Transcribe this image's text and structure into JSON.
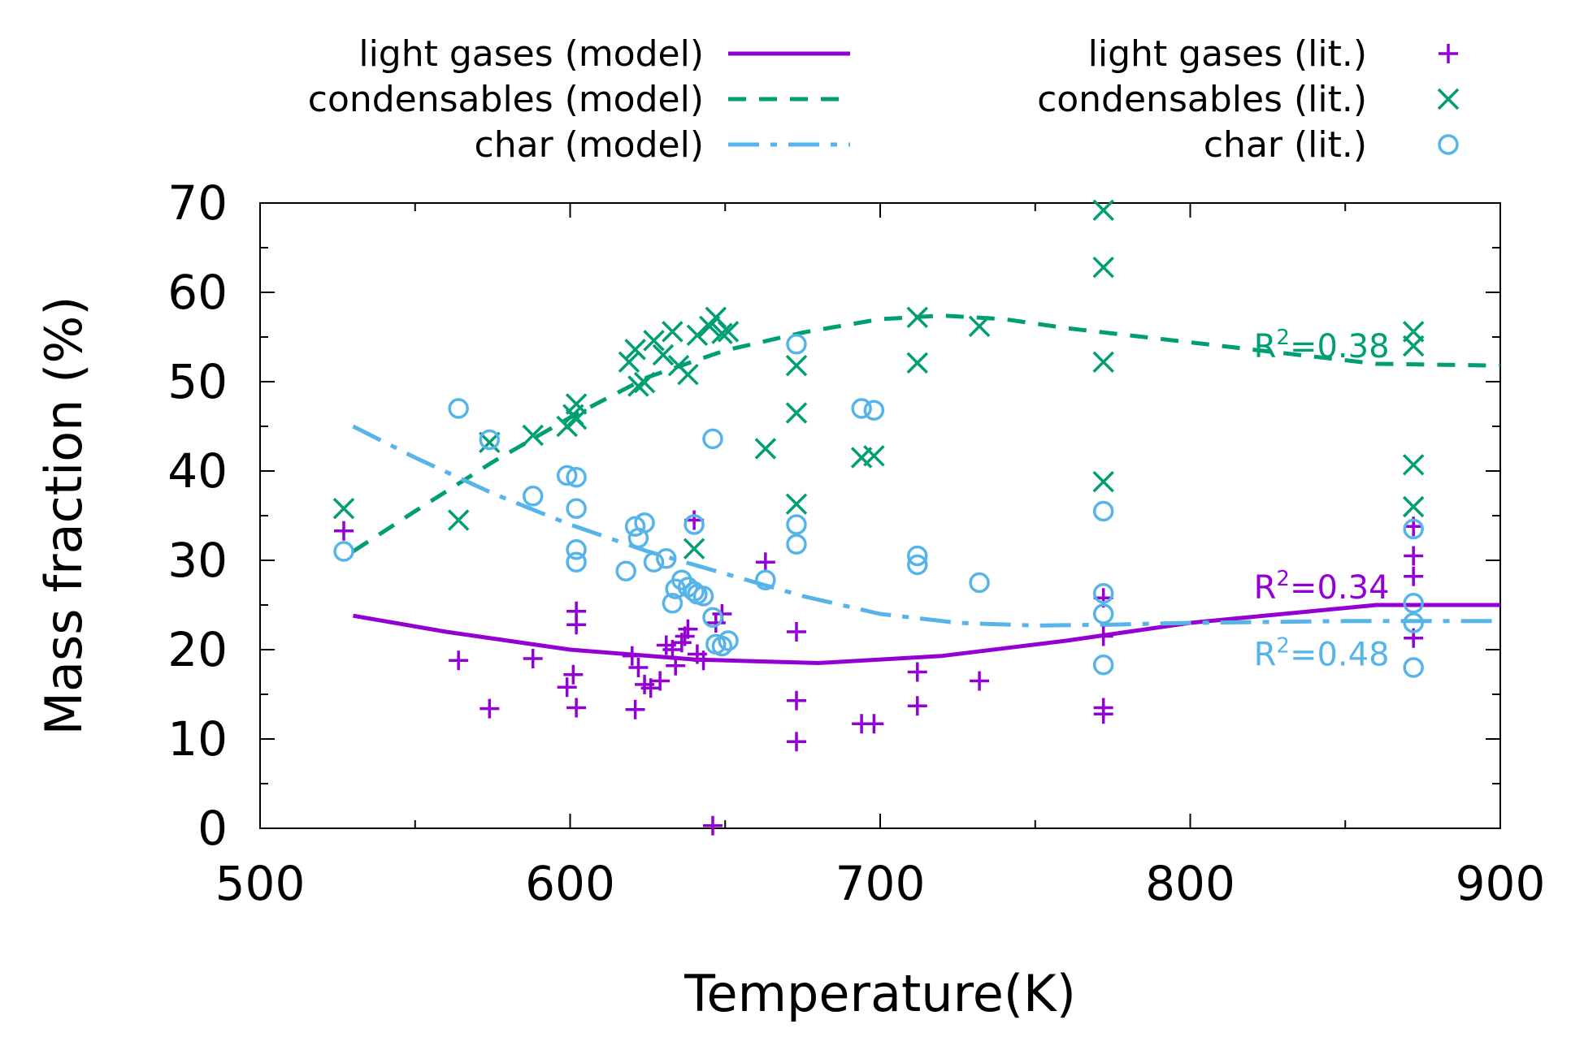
{
  "chart_data": {
    "type": "scatter",
    "title": "",
    "xlabel": "Temperature(K)",
    "ylabel": "Mass fraction (%)",
    "xlim": [
      500,
      900
    ],
    "ylim": [
      0,
      70
    ],
    "xticks": [
      500,
      600,
      700,
      800,
      900
    ],
    "xticks_minor": [
      550,
      650,
      750,
      850
    ],
    "yticks": [
      0,
      10,
      20,
      30,
      40,
      50,
      60,
      70
    ],
    "yticks_minor": [
      5,
      15,
      25,
      35,
      45,
      55,
      65
    ],
    "grid": false,
    "legend_position": "top (outside plot)",
    "colors": {
      "light_gases": "#9400d3",
      "condensables": "#009e73",
      "char": "#56b4e9"
    },
    "lines": [
      {
        "name": "light gases (model)",
        "color": "#9400d3",
        "style": "solid",
        "x": [
          530,
          560,
          600,
          640,
          680,
          720,
          760,
          800,
          830,
          860,
          880,
          900
        ],
        "y": [
          23.8,
          22.0,
          20.0,
          18.9,
          18.5,
          19.3,
          21.0,
          23.0,
          24.0,
          25.0,
          25.0,
          25.0
        ]
      },
      {
        "name": "condensables (model)",
        "color": "#009e73",
        "style": "dashed",
        "x": [
          530,
          550,
          575,
          600,
          625,
          650,
          675,
          700,
          720,
          740,
          760,
          790,
          820,
          860,
          900
        ],
        "y": [
          31.0,
          35.5,
          41.0,
          46.0,
          50.5,
          53.5,
          55.5,
          57.0,
          57.4,
          57.0,
          56.0,
          54.8,
          53.6,
          52.0,
          51.8
        ]
      },
      {
        "name": "char (model)",
        "color": "#56b4e9",
        "style": "dashdot",
        "x": [
          530,
          550,
          575,
          600,
          625,
          650,
          675,
          700,
          725,
          750,
          775,
          800,
          850,
          900
        ],
        "y": [
          45.0,
          41.5,
          37.5,
          34.0,
          31.0,
          28.5,
          26.0,
          24.0,
          23.0,
          22.7,
          22.8,
          23.0,
          23.2,
          23.2
        ]
      }
    ],
    "series": [
      {
        "name": "light gases (lit.)",
        "color": "#9400d3",
        "marker": "plus",
        "points": [
          [
            527,
            33.3
          ],
          [
            564,
            18.8
          ],
          [
            574,
            13.4
          ],
          [
            588,
            19.0
          ],
          [
            599,
            15.8
          ],
          [
            601,
            17.2
          ],
          [
            602,
            24.3
          ],
          [
            602,
            22.8
          ],
          [
            602,
            13.5
          ],
          [
            620,
            19.3
          ],
          [
            622,
            18.0
          ],
          [
            624,
            16.1
          ],
          [
            621,
            13.3
          ],
          [
            626,
            15.7
          ],
          [
            629,
            16.5
          ],
          [
            631,
            20.5
          ],
          [
            633,
            20.0
          ],
          [
            634,
            18.2
          ],
          [
            636,
            20.8
          ],
          [
            637,
            21.5
          ],
          [
            638,
            22.3
          ],
          [
            640,
            34.5
          ],
          [
            641,
            19.5
          ],
          [
            643,
            18.8
          ],
          [
            646,
            0.3
          ],
          [
            649,
            24.0
          ],
          [
            647,
            23.0
          ],
          [
            663,
            29.8
          ],
          [
            673,
            22.0
          ],
          [
            673,
            14.3
          ],
          [
            673,
            9.7
          ],
          [
            694,
            11.7
          ],
          [
            698,
            11.7
          ],
          [
            712,
            17.5
          ],
          [
            712,
            13.7
          ],
          [
            732,
            16.5
          ],
          [
            772,
            25.8
          ],
          [
            772,
            21.5
          ],
          [
            772,
            13.5
          ],
          [
            772,
            12.8
          ],
          [
            872,
            33.8
          ],
          [
            872,
            30.5
          ],
          [
            872,
            28.2
          ],
          [
            872,
            21.3
          ]
        ]
      },
      {
        "name": "condensables (lit.)",
        "color": "#009e73",
        "marker": "cross",
        "points": [
          [
            527,
            35.8
          ],
          [
            564,
            34.5
          ],
          [
            574,
            43.2
          ],
          [
            588,
            44.0
          ],
          [
            599,
            45.0
          ],
          [
            601,
            46.3
          ],
          [
            602,
            47.5
          ],
          [
            602,
            45.8
          ],
          [
            619,
            52.2
          ],
          [
            621,
            53.6
          ],
          [
            622,
            49.5
          ],
          [
            624,
            49.9
          ],
          [
            627,
            54.6
          ],
          [
            630,
            53.0
          ],
          [
            633,
            55.6
          ],
          [
            635,
            51.8
          ],
          [
            638,
            50.8
          ],
          [
            640,
            31.3
          ],
          [
            641,
            55.2
          ],
          [
            645,
            56.2
          ],
          [
            647,
            57.2
          ],
          [
            649,
            55.4
          ],
          [
            651,
            55.6
          ],
          [
            663,
            42.5
          ],
          [
            673,
            51.8
          ],
          [
            673,
            46.5
          ],
          [
            673,
            36.3
          ],
          [
            694,
            41.5
          ],
          [
            698,
            41.7
          ],
          [
            712,
            57.2
          ],
          [
            712,
            52.1
          ],
          [
            732,
            56.2
          ],
          [
            772,
            69.2
          ],
          [
            772,
            62.8
          ],
          [
            772,
            52.2
          ],
          [
            772,
            38.8
          ],
          [
            872,
            55.6
          ],
          [
            872,
            54.0
          ],
          [
            872,
            40.7
          ],
          [
            872,
            36.0
          ]
        ]
      },
      {
        "name": "char (lit.)",
        "color": "#56b4e9",
        "marker": "circle",
        "points": [
          [
            527,
            31.0
          ],
          [
            564,
            47.0
          ],
          [
            574,
            43.5
          ],
          [
            588,
            37.2
          ],
          [
            599,
            39.5
          ],
          [
            602,
            39.3
          ],
          [
            602,
            35.8
          ],
          [
            602,
            31.2
          ],
          [
            602,
            29.8
          ],
          [
            618,
            28.8
          ],
          [
            621,
            33.8
          ],
          [
            622,
            32.5
          ],
          [
            624,
            34.2
          ],
          [
            627,
            29.8
          ],
          [
            631,
            30.2
          ],
          [
            633,
            25.2
          ],
          [
            634,
            26.8
          ],
          [
            636,
            27.8
          ],
          [
            638,
            27.0
          ],
          [
            640,
            26.5
          ],
          [
            641,
            26.2
          ],
          [
            643,
            26.0
          ],
          [
            640,
            34.0
          ],
          [
            646,
            43.6
          ],
          [
            646,
            23.6
          ],
          [
            647,
            20.6
          ],
          [
            649,
            20.4
          ],
          [
            651,
            21.0
          ],
          [
            663,
            27.8
          ],
          [
            673,
            54.2
          ],
          [
            673,
            34.0
          ],
          [
            673,
            31.8
          ],
          [
            694,
            47.0
          ],
          [
            698,
            46.8
          ],
          [
            712,
            30.5
          ],
          [
            712,
            29.5
          ],
          [
            732,
            27.5
          ],
          [
            772,
            35.5
          ],
          [
            772,
            26.3
          ],
          [
            772,
            24.0
          ],
          [
            772,
            18.3
          ],
          [
            872,
            33.5
          ],
          [
            872,
            25.2
          ],
          [
            872,
            23.0
          ],
          [
            872,
            18.0
          ]
        ]
      }
    ],
    "annotations": [
      {
        "text": "R",
        "sup": "2",
        "value": "=0.38",
        "color": "#009e73",
        "x": 870,
        "y": 54.0
      },
      {
        "text": "R",
        "sup": "2",
        "value": "=0.34",
        "color": "#9400d3",
        "x": 870,
        "y": 27.0
      },
      {
        "text": "R",
        "sup": "2",
        "value": "=0.48",
        "color": "#56b4e9",
        "x": 870,
        "y": 19.5
      }
    ]
  }
}
